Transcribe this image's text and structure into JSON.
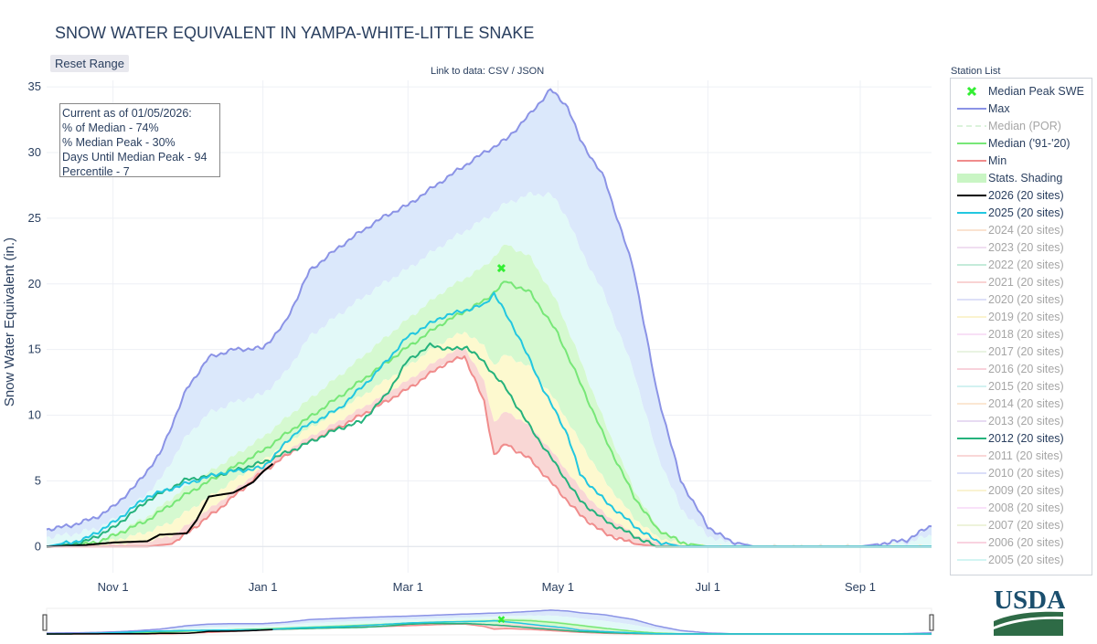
{
  "title": "SNOW WATER EQUIVALENT IN YAMPA-WHITE-LITTLE SNAKE",
  "reset_button": "Reset Range",
  "links": {
    "prefix": "Link to data:",
    "csv": "CSV",
    "sep": "/",
    "json": "JSON"
  },
  "station_list": "Station List",
  "annotation": [
    "Current as of 01/05/2026:",
    "% of Median - 74%",
    "% Median Peak - 30%",
    "Days Until Median Peak - 94",
    "Percentile - 7"
  ],
  "colors": {
    "max": "#8b93e6",
    "median_por": "#b8e8b8",
    "median_9120": "#77e777",
    "min": "#f08c8c",
    "current": "#000000",
    "y2025": "#22c7e0",
    "y2012": "#25b27c",
    "peak": "#33ee33",
    "band_outer": "#dbe8fb",
    "band_mid": "#e2f9f8",
    "band_median": "#d5f9d0",
    "band_low": "#fdf9cf",
    "band_min": "#f9d7d5"
  },
  "legend": [
    {
      "label": "Median Peak SWE",
      "type": "marker",
      "color": "#33ee33",
      "visible": true
    },
    {
      "label": "Max",
      "type": "line",
      "color": "#8b93e6",
      "visible": true
    },
    {
      "label": "Median (POR)",
      "type": "dash",
      "color": "#b8e8b8",
      "visible": false
    },
    {
      "label": "Median ('91-'20)",
      "type": "line",
      "color": "#77e777",
      "visible": true
    },
    {
      "label": "Min",
      "type": "line",
      "color": "#f08c8c",
      "visible": true
    },
    {
      "label": "Stats. Shading",
      "type": "fill",
      "color": "#c9f5c4",
      "visible": true
    },
    {
      "label": "2026 (20 sites)",
      "type": "line",
      "color": "#000000",
      "visible": true
    },
    {
      "label": "2025 (20 sites)",
      "type": "line",
      "color": "#22c7e0",
      "visible": true
    },
    {
      "label": "2024 (20 sites)",
      "type": "line",
      "color": "#f6c8a4",
      "visible": false
    },
    {
      "label": "2023 (20 sites)",
      "type": "line",
      "color": "#e2bfe4",
      "visible": false
    },
    {
      "label": "2022 (20 sites)",
      "type": "line",
      "color": "#8ad8b6",
      "visible": false
    },
    {
      "label": "2021 (20 sites)",
      "type": "line",
      "color": "#f4a9a9",
      "visible": false
    },
    {
      "label": "2020 (20 sites)",
      "type": "line",
      "color": "#bcc2f2",
      "visible": false
    },
    {
      "label": "2019 (20 sites)",
      "type": "line",
      "color": "#f8e9a0",
      "visible": false
    },
    {
      "label": "2018 (20 sites)",
      "type": "line",
      "color": "#f3c2ee",
      "visible": false
    },
    {
      "label": "2017 (20 sites)",
      "type": "line",
      "color": "#d5e9c6",
      "visible": false
    },
    {
      "label": "2016 (20 sites)",
      "type": "line",
      "color": "#f3a7b8",
      "visible": false
    },
    {
      "label": "2015 (20 sites)",
      "type": "line",
      "color": "#a9e6e4",
      "visible": false
    },
    {
      "label": "2014 (20 sites)",
      "type": "line",
      "color": "#f8d1a9",
      "visible": false
    },
    {
      "label": "2013 (20 sites)",
      "type": "line",
      "color": "#d0b9e6",
      "visible": false
    },
    {
      "label": "2012 (20 sites)",
      "type": "line",
      "color": "#25b27c",
      "visible": true
    },
    {
      "label": "2011 (20 sites)",
      "type": "line",
      "color": "#f4b0b0",
      "visible": false
    },
    {
      "label": "2010 (20 sites)",
      "type": "line",
      "color": "#b8bff2",
      "visible": false
    },
    {
      "label": "2009 (20 sites)",
      "type": "line",
      "color": "#f7e8a6",
      "visible": false
    },
    {
      "label": "2008 (20 sites)",
      "type": "line",
      "color": "#f4c4f4",
      "visible": false
    },
    {
      "label": "2007 (20 sites)",
      "type": "line",
      "color": "#dce9b9",
      "visible": false
    },
    {
      "label": "2006 (20 sites)",
      "type": "line",
      "color": "#f4a8c2",
      "visible": false
    },
    {
      "label": "2005 (20 sites)",
      "type": "line",
      "color": "#a9ece8",
      "visible": false
    }
  ],
  "logo": {
    "text": "USDA",
    "color": "#1b4f6e"
  },
  "chart_data": {
    "type": "line",
    "title": "SNOW WATER EQUIVALENT IN YAMPA-WHITE-LITTLE SNAKE",
    "ylabel": "Snow Water Equivalent (in.)",
    "xlabel": "",
    "x_ticks": [
      "Nov 1",
      "Jan 1",
      "Mar 1",
      "May 1",
      "Jul 1",
      "Sep 1"
    ],
    "y_ticks": [
      0,
      5,
      10,
      15,
      20,
      25,
      30,
      35
    ],
    "ylim": [
      -2,
      35.5
    ],
    "xlim": [
      "Oct 5",
      "Sep 30"
    ],
    "grid": true,
    "legend_position": "right",
    "median_peak": {
      "x": "Apr 8",
      "y": 21.2
    },
    "series": [
      {
        "name": "Max",
        "key": "max",
        "points": [
          [
            "Oct 5",
            1.3
          ],
          [
            "Oct 15",
            1.6
          ],
          [
            "Oct 25",
            2.2
          ],
          [
            "Nov 1",
            3.0
          ],
          [
            "Nov 10",
            4.6
          ],
          [
            "Nov 20",
            7.0
          ],
          [
            "Dec 1",
            12.0
          ],
          [
            "Dec 10",
            14.4
          ],
          [
            "Dec 20",
            15.0
          ],
          [
            "Jan 1",
            15.1
          ],
          [
            "Jan 10",
            17.0
          ],
          [
            "Jan 20",
            21.0
          ],
          [
            "Feb 1",
            22.8
          ],
          [
            "Feb 10",
            24.0
          ],
          [
            "Feb 20",
            25.2
          ],
          [
            "Mar 1",
            26.0
          ],
          [
            "Mar 10",
            27.2
          ],
          [
            "Mar 20",
            28.5
          ],
          [
            "Apr 1",
            30.0
          ],
          [
            "Apr 10",
            31.0
          ],
          [
            "Apr 20",
            33.0
          ],
          [
            "Apr 28",
            34.8
          ],
          [
            "May 5",
            33.5
          ],
          [
            "May 10",
            31.0
          ],
          [
            "May 20",
            28.0
          ],
          [
            "Jun 1",
            21.0
          ],
          [
            "Jun 10",
            12.0
          ],
          [
            "Jun 20",
            5.0
          ],
          [
            "Jul 1",
            1.5
          ],
          [
            "Jul 10",
            0.4
          ],
          [
            "Jul 20",
            0.0
          ],
          [
            "Aug 1",
            0.0
          ],
          [
            "Sep 1",
            0.0
          ],
          [
            "Sep 20",
            0.5
          ],
          [
            "Sep 30",
            1.6
          ]
        ]
      },
      {
        "name": "Median ('91-'20)",
        "key": "median",
        "points": [
          [
            "Oct 5",
            0.0
          ],
          [
            "Oct 15",
            0.1
          ],
          [
            "Oct 25",
            0.3
          ],
          [
            "Nov 1",
            0.8
          ],
          [
            "Nov 15",
            2.0
          ],
          [
            "Dec 1",
            4.0
          ],
          [
            "Dec 15",
            5.5
          ],
          [
            "Jan 1",
            7.3
          ],
          [
            "Jan 15",
            9.2
          ],
          [
            "Feb 1",
            11.4
          ],
          [
            "Feb 15",
            13.3
          ],
          [
            "Mar 1",
            15.2
          ],
          [
            "Mar 15",
            17.0
          ],
          [
            "Apr 1",
            18.7
          ],
          [
            "Apr 10",
            20.2
          ],
          [
            "Apr 20",
            19.3
          ],
          [
            "May 1",
            16.2
          ],
          [
            "May 10",
            12.5
          ],
          [
            "May 20",
            8.3
          ],
          [
            "Jun 1",
            3.8
          ],
          [
            "Jun 10",
            1.4
          ],
          [
            "Jun 20",
            0.3
          ],
          [
            "Jul 1",
            0.0
          ],
          [
            "Sep 30",
            0.0
          ]
        ]
      },
      {
        "name": "Min",
        "key": "min",
        "points": [
          [
            "Oct 5",
            0.0
          ],
          [
            "Nov 15",
            0.0
          ],
          [
            "Nov 25",
            0.2
          ],
          [
            "Dec 1",
            1.0
          ],
          [
            "Dec 15",
            3.0
          ],
          [
            "Jan 1",
            5.7
          ],
          [
            "Jan 15",
            7.5
          ],
          [
            "Feb 1",
            9.1
          ],
          [
            "Feb 15",
            10.5
          ],
          [
            "Mar 1",
            12.0
          ],
          [
            "Mar 15",
            13.8
          ],
          [
            "Mar 24",
            14.5
          ],
          [
            "Apr 1",
            11.0
          ],
          [
            "Apr 5",
            7.0
          ],
          [
            "Apr 10",
            7.8
          ],
          [
            "Apr 20",
            6.6
          ],
          [
            "May 1",
            4.3
          ],
          [
            "May 10",
            2.4
          ],
          [
            "May 20",
            1.0
          ],
          [
            "Jun 1",
            0.2
          ],
          [
            "Jun 10",
            0.0
          ],
          [
            "Sep 30",
            0.0
          ]
        ]
      },
      {
        "name": "2026 (20 sites)",
        "key": "current",
        "points": [
          [
            "Oct 5",
            0.0
          ],
          [
            "Oct 20",
            0.1
          ],
          [
            "Nov 1",
            0.3
          ],
          [
            "Nov 15",
            0.4
          ],
          [
            "Nov 20",
            0.9
          ],
          [
            "Dec 1",
            1.0
          ],
          [
            "Dec 5",
            2.0
          ],
          [
            "Dec 10",
            3.8
          ],
          [
            "Dec 20",
            4.1
          ],
          [
            "Dec 28",
            4.9
          ],
          [
            "Jan 1",
            5.7
          ],
          [
            "Jan 5",
            6.3
          ]
        ]
      },
      {
        "name": "2025 (20 sites)",
        "key": "y2025",
        "points": [
          [
            "Oct 5",
            0.0
          ],
          [
            "Oct 20",
            0.5
          ],
          [
            "Nov 1",
            1.8
          ],
          [
            "Nov 15",
            3.8
          ],
          [
            "Dec 1",
            4.8
          ],
          [
            "Dec 15",
            5.6
          ],
          [
            "Jan 1",
            6.0
          ],
          [
            "Jan 15",
            8.8
          ],
          [
            "Feb 1",
            10.5
          ],
          [
            "Feb 15",
            13.0
          ],
          [
            "Mar 1",
            16.0
          ],
          [
            "Mar 15",
            17.5
          ],
          [
            "Apr 1",
            18.4
          ],
          [
            "Apr 5",
            19.3
          ],
          [
            "Apr 15",
            16.0
          ],
          [
            "Apr 25",
            12.0
          ],
          [
            "May 5",
            8.5
          ],
          [
            "May 10",
            5.5
          ],
          [
            "May 20",
            3.5
          ],
          [
            "Jun 1",
            1.6
          ],
          [
            "Jun 10",
            0.4
          ],
          [
            "Jun 20",
            0.0
          ],
          [
            "Sep 30",
            0.0
          ]
        ]
      },
      {
        "name": "2012 (20 sites)",
        "key": "y2012",
        "points": [
          [
            "Oct 5",
            0.0
          ],
          [
            "Oct 20",
            0.3
          ],
          [
            "Nov 1",
            1.4
          ],
          [
            "Nov 15",
            3.5
          ],
          [
            "Dec 1",
            5.1
          ],
          [
            "Dec 15",
            5.5
          ],
          [
            "Jan 1",
            6.4
          ],
          [
            "Jan 15",
            7.5
          ],
          [
            "Feb 1",
            9.0
          ],
          [
            "Feb 10",
            9.5
          ],
          [
            "Feb 20",
            11.5
          ],
          [
            "Mar 1",
            14.2
          ],
          [
            "Mar 10",
            15.3
          ],
          [
            "Mar 20",
            15.0
          ],
          [
            "Mar 25",
            15.2
          ],
          [
            "Apr 1",
            14.0
          ],
          [
            "Apr 10",
            12.0
          ],
          [
            "Apr 20",
            9.0
          ],
          [
            "May 1",
            6.0
          ],
          [
            "May 10",
            3.5
          ],
          [
            "May 20",
            2.0
          ],
          [
            "Jun 1",
            0.8
          ],
          [
            "Jun 10",
            0.0
          ],
          [
            "Sep 30",
            0.0
          ]
        ]
      }
    ]
  }
}
